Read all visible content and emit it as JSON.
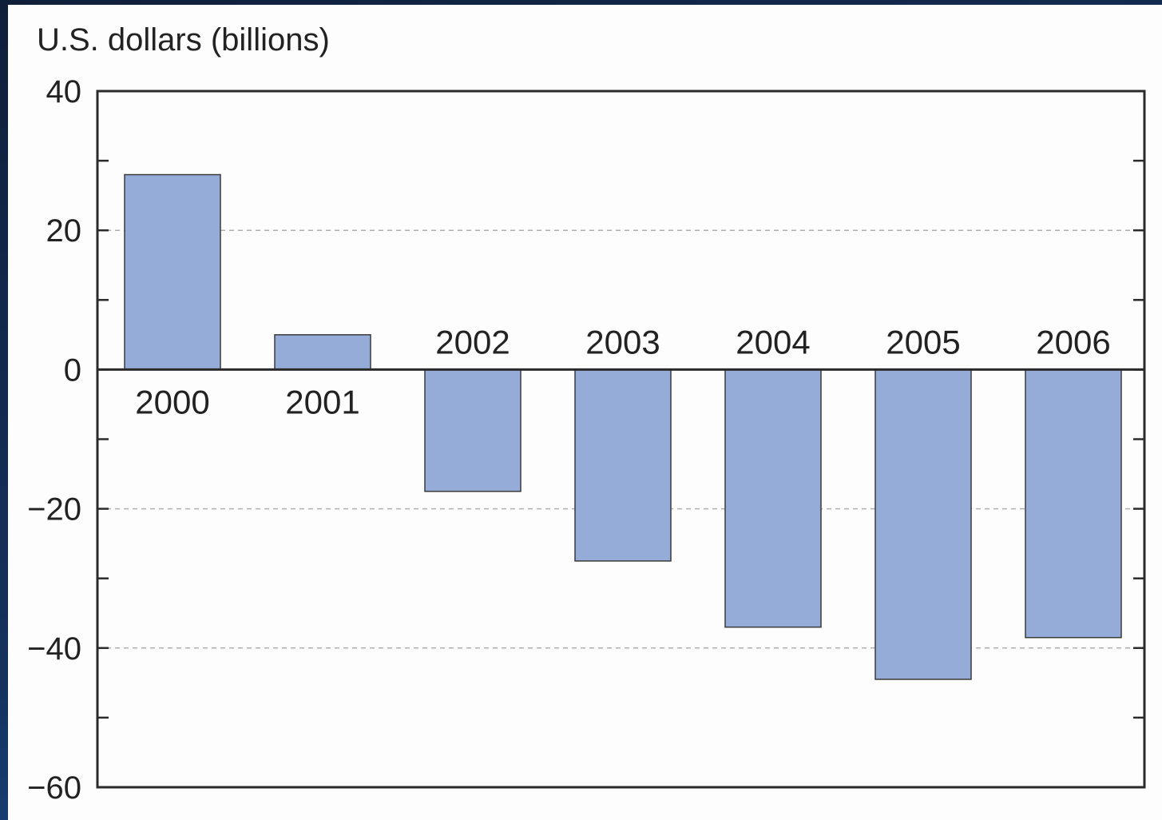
{
  "chart_data": {
    "type": "bar",
    "ylabel": "U.S. dollars (billions)",
    "categories": [
      "2000",
      "2001",
      "2002",
      "2003",
      "2004",
      "2005",
      "2006"
    ],
    "values": [
      28,
      5,
      -17.5,
      -27.5,
      -37,
      -44.5,
      -38.5
    ],
    "ylim": [
      -60,
      40
    ],
    "yticks": [
      40,
      20,
      0,
      -20,
      -40,
      -60
    ],
    "ytick_labels": [
      "40",
      "20",
      "0",
      "−20",
      "−40",
      "−60"
    ],
    "minor_tick_step": 10,
    "grid": "dashed at major ticks",
    "bar_color": "#96acd8",
    "bar_edge_color": "#3a3a3a"
  }
}
